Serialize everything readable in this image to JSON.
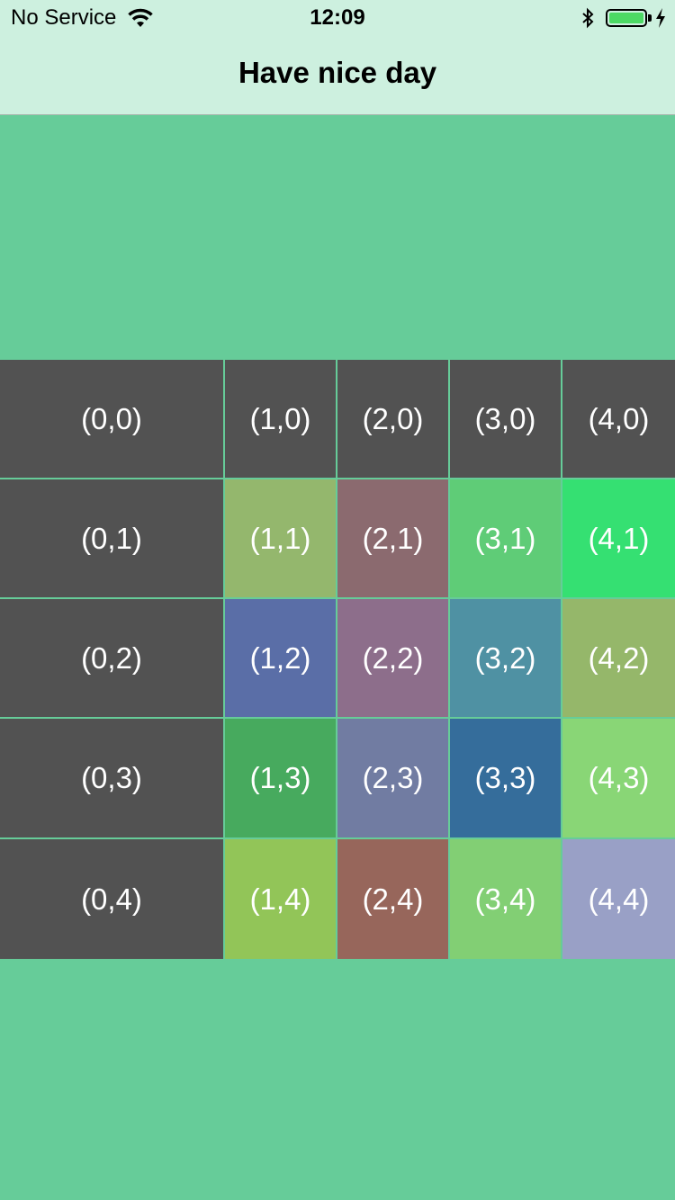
{
  "status_bar": {
    "carrier": "No Service",
    "time": "12:09",
    "icons": [
      "wifi-icon",
      "bluetooth-icon",
      "battery-icon",
      "charging-bolt-icon"
    ],
    "battery_color": "#4cd964"
  },
  "nav": {
    "title": "Have nice day"
  },
  "grid": {
    "rows": [
      {
        "cells": [
          {
            "label": "(0,0)",
            "color": "#525252"
          },
          {
            "label": "(1,0)",
            "color": "#525252"
          },
          {
            "label": "(2,0)",
            "color": "#525252"
          },
          {
            "label": "(3,0)",
            "color": "#525252"
          },
          {
            "label": "(4,0)",
            "color": "#525252"
          }
        ]
      },
      {
        "cells": [
          {
            "label": "(0,1)",
            "color": "#525252"
          },
          {
            "label": "(1,1)",
            "color": "#94b76d"
          },
          {
            "label": "(2,1)",
            "color": "#8b6a6f"
          },
          {
            "label": "(3,1)",
            "color": "#5fcc77"
          },
          {
            "label": "(4,1)",
            "color": "#35e072"
          }
        ]
      },
      {
        "cells": [
          {
            "label": "(0,2)",
            "color": "#525252"
          },
          {
            "label": "(1,2)",
            "color": "#5a6ea7"
          },
          {
            "label": "(2,2)",
            "color": "#8d6e8b"
          },
          {
            "label": "(3,2)",
            "color": "#4f91a3"
          },
          {
            "label": "(4,2)",
            "color": "#95b76a"
          }
        ]
      },
      {
        "cells": [
          {
            "label": "(0,3)",
            "color": "#525252"
          },
          {
            "label": "(1,3)",
            "color": "#47aa5e"
          },
          {
            "label": "(2,3)",
            "color": "#717ca2"
          },
          {
            "label": "(3,3)",
            "color": "#356d9b"
          },
          {
            "label": "(4,3)",
            "color": "#89d676"
          }
        ]
      },
      {
        "cells": [
          {
            "label": "(0,4)",
            "color": "#525252"
          },
          {
            "label": "(1,4)",
            "color": "#92c558"
          },
          {
            "label": "(2,4)",
            "color": "#97665b"
          },
          {
            "label": "(3,4)",
            "color": "#82cf74"
          },
          {
            "label": "(4,4)",
            "color": "#99a0c6"
          }
        ]
      }
    ]
  }
}
